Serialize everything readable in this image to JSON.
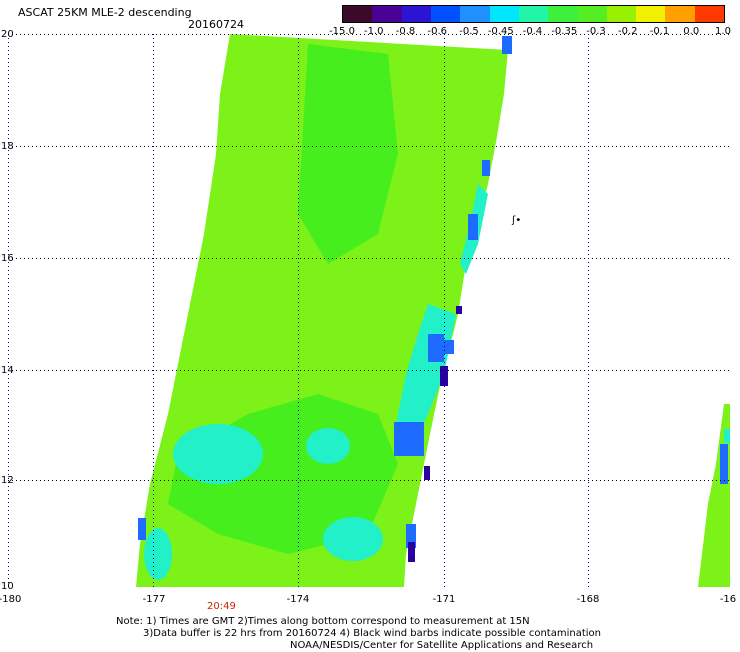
{
  "header": {
    "title": "ASCAT 25KM MLE-2 descending",
    "date": "20160724"
  },
  "colorbar": {
    "labels": [
      "-15.0",
      "-1.0",
      "-0.8",
      "-0.6",
      "-0.5",
      "-0.45",
      "-0.4",
      "-0.35",
      "-0.3",
      "-0.2",
      "-0.1",
      "0.0",
      "1.0"
    ],
    "colors": [
      "#3a0a28",
      "#4b0096",
      "#2c14d2",
      "#0050ff",
      "#1e90ff",
      "#00e6ff",
      "#22f5a8",
      "#3cf03c",
      "#55ee22",
      "#96f000",
      "#f0f000",
      "#ffa000",
      "#ff3a00"
    ]
  },
  "map": {
    "lat_labels": [
      "20",
      "18",
      "16",
      "14",
      "12",
      "10"
    ],
    "lon_labels": [
      "-180",
      "-177",
      "-174",
      "-171",
      "-168",
      "-16"
    ],
    "time_label": "20:49",
    "barb_symbol": "ʃ•"
  },
  "footer": {
    "note_line1": "Note: 1) Times are GMT 2)Times along bottom correspond to measurement at 15N",
    "note_line2": "3)Data buffer is 22 hrs from 20160724 4) Black wind barbs indicate possible contamination",
    "note_line3": "NOAA/NESDIS/Center for Satellite Applications and Research"
  },
  "colors": {
    "swath_main": "#7cf218",
    "swath_dark": "#46ee1e",
    "swath_cyan": "#22f0c8",
    "swath_blue": "#1e6cff",
    "swath_indigo": "#2a00a0",
    "grid": "#000000"
  }
}
